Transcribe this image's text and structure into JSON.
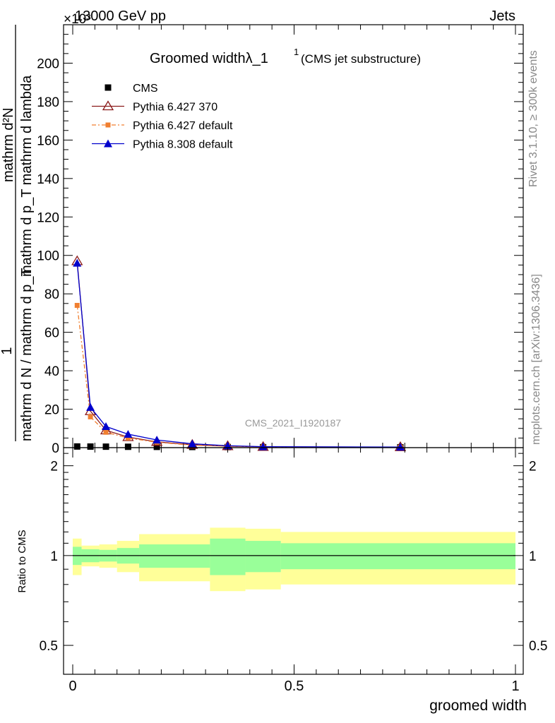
{
  "header": {
    "energy": "13000 GeV pp",
    "process": "Jets",
    "exponent": "×10³"
  },
  "side_labels": {
    "rivet": "Rivet 3.1.10, ≥ 300k events",
    "mcplots": "mcplots.cern.ch [arXiv:1306.3436]"
  },
  "chart_data": {
    "type": "line",
    "title": "Groomed widthλ_1",
    "title_sup": "1",
    "title_suffix": "(CMS jet substructure)",
    "watermark": "CMS_2021_I1920187",
    "ylabel_top": "mathrm d²N",
    "ylabel_frac_top": "mathrm d p_T mathrm d lambda",
    "ylabel_one": "1",
    "ylabel_bottom": "mathrm d N / mathrm d p_T",
    "ratio_ylabel": "Ratio to CMS",
    "xlabel": "groomed width",
    "xlim": [
      0,
      1
    ],
    "ylim": [
      0,
      220
    ],
    "y_ticks": [
      "0",
      "20",
      "40",
      "60",
      "80",
      "100",
      "120",
      "140",
      "160",
      "180",
      "200"
    ],
    "ratio_ylim": [
      0.4,
      2.3
    ],
    "ratio_ticks": [
      "0.5",
      "1",
      "2"
    ],
    "x_ticks": [
      "0",
      "0.5",
      "1"
    ],
    "x": [
      0.01,
      0.04,
      0.075,
      0.125,
      0.19,
      0.27,
      0.35,
      0.43,
      0.74
    ],
    "series": [
      {
        "name": "CMS",
        "color": "#000000",
        "marker": "square",
        "values": [
          0.6,
          0.55,
          0.5,
          0.45,
          0.4,
          0.35,
          0.3,
          0.25,
          0.2
        ]
      },
      {
        "name": "Pythia 6.427 370",
        "color": "#8b1a1a",
        "marker": "triangle-open",
        "values": [
          97,
          19,
          9,
          5.5,
          3,
          1.5,
          0.8,
          0.4,
          0.3
        ]
      },
      {
        "name": "Pythia 6.427 default",
        "color": "#f07f30",
        "marker": "square-small",
        "values": [
          74,
          16,
          8,
          5,
          2.8,
          1.3,
          0.7,
          0.35,
          0.25
        ]
      },
      {
        "name": "Pythia 8.308 default",
        "color": "#0000cc",
        "marker": "triangle",
        "values": [
          96,
          21,
          11,
          7,
          4,
          2,
          1,
          0.5,
          0.3
        ]
      }
    ],
    "ratio_bands": {
      "edges": [
        0,
        0.02,
        0.06,
        0.1,
        0.15,
        0.31,
        0.39,
        0.47,
        1.0
      ],
      "inner": [
        0.07,
        0.05,
        0.045,
        0.06,
        0.09,
        0.14,
        0.12,
        0.1
      ],
      "outer": [
        0.14,
        0.08,
        0.09,
        0.12,
        0.18,
        0.24,
        0.23,
        0.2
      ]
    }
  }
}
